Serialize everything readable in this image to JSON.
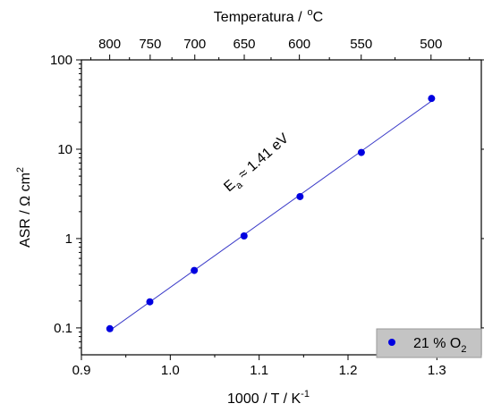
{
  "chart_data": {
    "type": "scatter",
    "x_axis": {
      "title": "1000 / T  / K",
      "title_sup": "-1",
      "range": [
        0.9,
        1.35
      ],
      "ticks": [
        0.9,
        1.0,
        1.1,
        1.2,
        1.3
      ],
      "tick_labels": [
        "0.9",
        "1.0",
        "1.1",
        "1.2",
        "1.3"
      ]
    },
    "x2_axis": {
      "title": "Temperatura /",
      "title_sup": "o",
      "title_unit": "C",
      "ticks_celsius": [
        800,
        750,
        700,
        650,
        600,
        550,
        500
      ],
      "tick_labels": [
        "800",
        "750",
        "700",
        "650",
        "600",
        "550",
        "500"
      ]
    },
    "y_axis": {
      "title": "ASR / Ω cm",
      "title_sup": "2",
      "scale": "log",
      "range": [
        0.05,
        100
      ],
      "ticks": [
        0.1,
        1,
        10,
        100
      ],
      "tick_labels": [
        "0.1",
        "1",
        "10",
        "100"
      ]
    },
    "series": [
      {
        "name": "21 % O",
        "name_sub": "2",
        "color": "#0000e0",
        "fit_line_color": "#3a3ac8",
        "x": [
          0.932,
          0.977,
          1.027,
          1.083,
          1.146,
          1.215,
          1.294
        ],
        "y": [
          0.098,
          0.196,
          0.44,
          1.07,
          2.95,
          9.2,
          37.0
        ]
      }
    ],
    "annotation": {
      "base": "E",
      "sub": "a",
      "text": " ≈ 1.41 eV",
      "at": [
        1.1,
        6.5
      ],
      "rotation_deg": -41
    },
    "legend": {
      "placement": "bottom-right"
    }
  }
}
